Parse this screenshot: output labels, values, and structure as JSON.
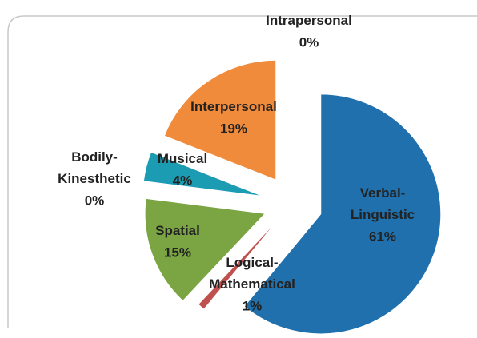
{
  "chart_data": {
    "type": "pie",
    "categories": [
      "Verbal-Linguistic",
      "Logical-Mathematical",
      "Spatial",
      "Bodily-Kinesthetic",
      "Musical",
      "Interpersonal",
      "Intrapersonal"
    ],
    "values": [
      61,
      1,
      15,
      0,
      4,
      19,
      0
    ],
    "value_labels": [
      "61%",
      "1%",
      "15%",
      "0%",
      "4%",
      "19%",
      "0%"
    ],
    "colors": [
      "#2070ae",
      "#c0504d",
      "#7aa542",
      "#4f81bd",
      "#1c9cb3",
      "#f08b3b",
      "#8064a2"
    ]
  }
}
